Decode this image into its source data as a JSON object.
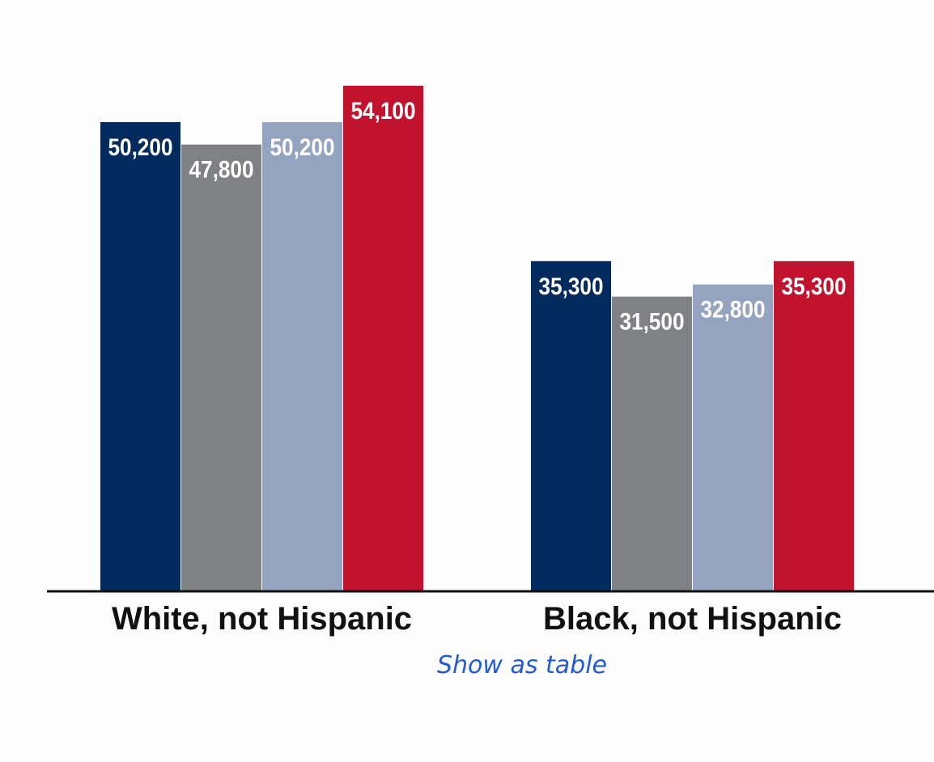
{
  "chart_data": {
    "type": "bar",
    "categories": [
      "White, not Hispanic",
      "Black, not Hispanic"
    ],
    "series": [
      {
        "values": [
          50200,
          35300
        ],
        "labels": [
          "50,200",
          "35,300"
        ],
        "color": "#022a5c"
      },
      {
        "values": [
          47800,
          31500
        ],
        "labels": [
          "47,800",
          "31,500"
        ],
        "color": "#808184"
      },
      {
        "values": [
          50200,
          32800
        ],
        "labels": [
          "50,200",
          "32,800"
        ],
        "color": "#94a3c0"
      },
      {
        "values": [
          54100,
          35300
        ],
        "labels": [
          "54,100",
          "35,300"
        ],
        "color": "#c1132e"
      }
    ],
    "ylim": [
      0,
      54100
    ],
    "grid": false,
    "legend": "none",
    "title": "",
    "xlabel": "",
    "ylabel": ""
  },
  "links": {
    "show_as_table": "Show as table"
  }
}
